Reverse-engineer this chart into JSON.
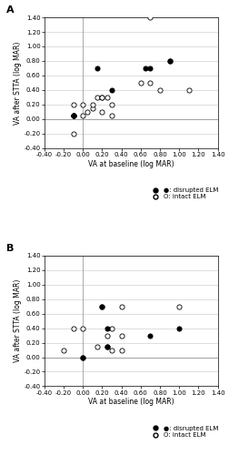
{
  "panel_A": {
    "disrupted_ELM": {
      "x": [
        -0.1,
        -0.1,
        0.15,
        0.3,
        0.65,
        0.7,
        0.9,
        0.9
      ],
      "y": [
        0.05,
        0.05,
        0.7,
        0.4,
        0.7,
        0.7,
        0.8,
        0.8
      ]
    },
    "intact_ELM": {
      "x": [
        -0.1,
        -0.1,
        -0.1,
        0.0,
        0.0,
        0.05,
        0.1,
        0.1,
        0.15,
        0.2,
        0.2,
        0.2,
        0.25,
        0.3,
        0.3,
        0.6,
        0.7,
        0.8,
        1.1,
        0.7,
        -0.1
      ],
      "y": [
        0.05,
        0.2,
        0.05,
        0.2,
        0.05,
        0.1,
        0.15,
        0.2,
        0.3,
        0.3,
        0.3,
        0.1,
        0.3,
        0.2,
        0.05,
        0.5,
        0.5,
        0.4,
        0.4,
        1.4,
        -0.2
      ]
    }
  },
  "panel_B": {
    "disrupted_ELM": {
      "x": [
        0.0,
        0.2,
        0.25,
        0.25,
        0.25,
        0.7,
        1.0
      ],
      "y": [
        0.0,
        0.7,
        0.15,
        0.15,
        0.4,
        0.3,
        0.4
      ]
    },
    "intact_ELM": {
      "x": [
        -0.2,
        0.0,
        0.0,
        0.15,
        0.2,
        0.25,
        0.3,
        0.3,
        0.4,
        0.4,
        0.4,
        1.0,
        -0.1
      ],
      "y": [
        0.1,
        0.0,
        0.4,
        0.15,
        0.7,
        0.3,
        0.4,
        0.1,
        0.7,
        0.3,
        0.1,
        0.7,
        0.4
      ]
    }
  },
  "xlim": [
    -0.4,
    1.4
  ],
  "ylim": [
    -0.4,
    1.4
  ],
  "xticks": [
    -0.4,
    -0.2,
    0.0,
    0.2,
    0.4,
    0.6,
    0.8,
    1.0,
    1.2,
    1.4
  ],
  "yticks": [
    -0.4,
    -0.2,
    0.0,
    0.2,
    0.4,
    0.6,
    0.8,
    1.0,
    1.2,
    1.4
  ],
  "xlabel": "VA at baseline (log MAR)",
  "ylabel": "VA after STTA (log MAR)",
  "marker_size": 14,
  "grid_color": "#d0d0d0",
  "label_disrupted": "●: disrupted ELM",
  "label_intact": "O: intact ELM",
  "tick_fontsize": 5,
  "label_fontsize": 5.5,
  "legend_fontsize": 5
}
